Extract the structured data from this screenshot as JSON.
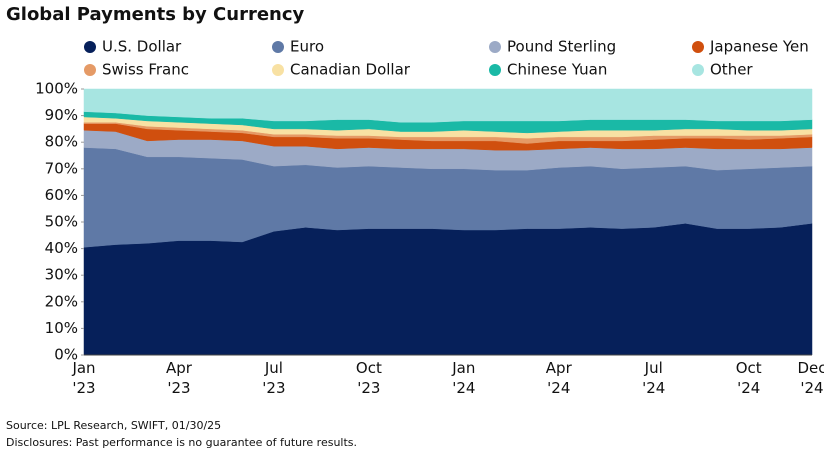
{
  "chart_data": {
    "type": "stacked-area",
    "title": "Global Payments by Currency",
    "source": "Source: LPL Research, SWIFT, 01/30/25",
    "note": "Disclosures: Past performance is no guarantee of future results.",
    "categories": [
      "Jan\n'23",
      null,
      null,
      "Apr\n'23",
      null,
      null,
      "Jul\n'23",
      null,
      null,
      "Oct\n'23",
      null,
      null,
      "Jan\n'24",
      null,
      null,
      "Apr\n'24",
      null,
      null,
      "Jul\n'24",
      null,
      null,
      "Oct\n'24",
      null,
      "Dec\n'24"
    ],
    "ylim": [
      0,
      100
    ],
    "yticks": [
      {
        "value": 0,
        "label": "0%"
      },
      {
        "value": 10,
        "label": "10%"
      },
      {
        "value": 20,
        "label": "20%"
      },
      {
        "value": 30,
        "label": "30%"
      },
      {
        "value": 40,
        "label": "40%"
      },
      {
        "value": 50,
        "label": "50%"
      },
      {
        "value": 60,
        "label": "60%"
      },
      {
        "value": 70,
        "label": "70%"
      },
      {
        "value": 80,
        "label": "80%"
      },
      {
        "value": 90,
        "label": "90%"
      },
      {
        "value": 100,
        "label": "100%"
      }
    ],
    "series": [
      {
        "name": "U.S. Dollar",
        "color": "#06205a",
        "values": [
          40.5,
          41.5,
          42,
          43,
          43,
          42.5,
          46.5,
          48,
          47,
          47.5,
          47.5,
          47.5,
          47,
          47,
          47.5,
          47.5,
          48,
          47.5,
          48,
          49.5,
          47.5,
          47.5,
          48,
          49.5
        ]
      },
      {
        "name": "Euro",
        "color": "#5f79a6",
        "values": [
          37.5,
          36,
          32.5,
          31.5,
          31,
          31,
          24.5,
          23.5,
          23.5,
          23.5,
          23,
          22.5,
          23,
          22.5,
          22,
          23,
          23,
          22.5,
          22.5,
          21.5,
          22,
          22.5,
          22.5,
          21.5
        ]
      },
      {
        "name": "Pound Sterling",
        "color": "#9caac6",
        "values": [
          6.5,
          6.5,
          6,
          6.5,
          7,
          7,
          7.5,
          7,
          7,
          7,
          7,
          7.5,
          7.5,
          7.5,
          7.5,
          7,
          7,
          7.5,
          7,
          7,
          8,
          7.5,
          7,
          7
        ]
      },
      {
        "name": "Japanese Yen",
        "color": "#d04f0e",
        "values": [
          2.5,
          3,
          4.5,
          3.5,
          3,
          3,
          3.5,
          3.5,
          4,
          3.5,
          3.5,
          3,
          3,
          3.5,
          2.5,
          3,
          2.5,
          3,
          3.5,
          3.5,
          4,
          3.5,
          4,
          4
        ]
      },
      {
        "name": "Swiss Franc",
        "color": "#e59a66",
        "values": [
          0.5,
          0.5,
          1,
          1,
          1,
          1,
          1,
          1,
          1,
          1,
          1,
          1.5,
          1.5,
          1.5,
          2,
          1.5,
          1.5,
          1.5,
          1.5,
          1,
          1,
          1.5,
          1,
          1
        ]
      },
      {
        "name": "Canadian Dollar",
        "color": "#f8e1a3",
        "values": [
          2,
          1.5,
          2,
          2,
          2,
          2,
          2,
          2,
          2,
          2.5,
          2,
          2,
          2.5,
          2,
          2,
          2,
          2.5,
          2.5,
          2,
          2.5,
          2.5,
          2,
          2,
          2
        ]
      },
      {
        "name": "Chinese Yuan",
        "color": "#1ab9a6",
        "values": [
          2,
          2,
          2,
          2,
          2,
          2.5,
          3,
          3,
          4,
          3.5,
          3.5,
          3.5,
          3.5,
          4,
          4.5,
          4,
          4,
          4,
          4,
          3.5,
          3,
          3.5,
          3.5,
          3.5
        ]
      },
      {
        "name": "Other",
        "color": "#a7e5e1",
        "values": [
          8.5,
          9,
          10,
          10.5,
          11,
          11,
          12,
          12,
          11.5,
          11.5,
          12.5,
          12.5,
          12,
          12,
          12,
          12,
          11.5,
          11.5,
          11.5,
          11.5,
          12,
          12,
          12,
          11.5
        ]
      }
    ]
  }
}
